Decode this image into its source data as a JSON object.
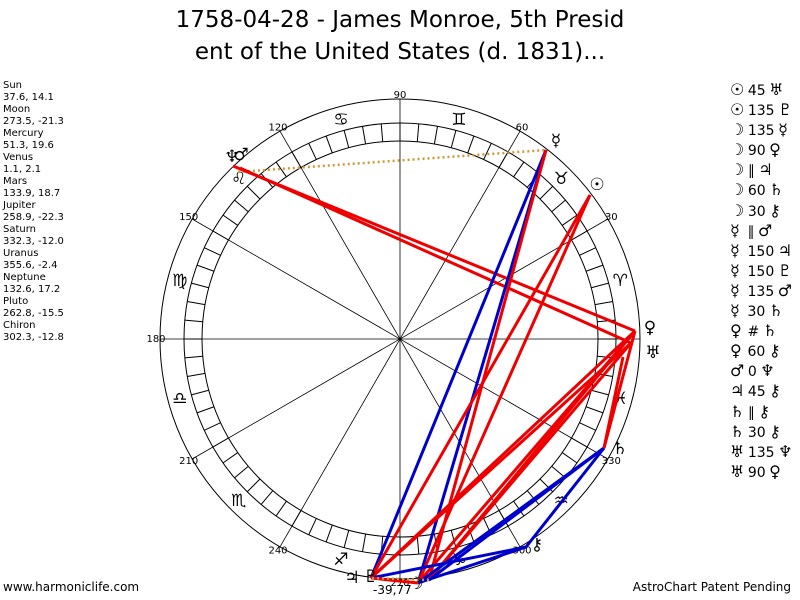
{
  "title": {
    "line1": "1758-04-28 - James Monroe, 5th Presid",
    "line2": "ent of the United States (d. 1831)..."
  },
  "planets": [
    {
      "name": "Sun",
      "coords": "37.6, 14.1"
    },
    {
      "name": "Moon",
      "coords": "273.5, -21.3"
    },
    {
      "name": "Mercury",
      "coords": "51.3, 19.6"
    },
    {
      "name": "Venus",
      "coords": "1.1, 2.1"
    },
    {
      "name": "Mars",
      "coords": "133.9, 18.7"
    },
    {
      "name": "Jupiter",
      "coords": "258.9, -22.3"
    },
    {
      "name": "Saturn",
      "coords": "332.3, -12.0"
    },
    {
      "name": "Uranus",
      "coords": "355.6, -2.4"
    },
    {
      "name": "Neptune",
      "coords": "132.6, 17.2"
    },
    {
      "name": "Pluto",
      "coords": "262.8, -15.5"
    },
    {
      "name": "Chiron",
      "coords": "302.3, -12.8"
    }
  ],
  "aspects": [
    {
      "p1": "☉",
      "aspect": "45",
      "p2": "♅"
    },
    {
      "p1": "☉",
      "aspect": "135",
      "p2": "♇"
    },
    {
      "p1": "☽",
      "aspect": "135",
      "p2": "☿"
    },
    {
      "p1": "☽",
      "aspect": "90",
      "p2": "♀"
    },
    {
      "p1": "☽",
      "aspect": "∥",
      "p2": "♃"
    },
    {
      "p1": "☽",
      "aspect": "60",
      "p2": "♄"
    },
    {
      "p1": "☽",
      "aspect": "30",
      "p2": "⚷"
    },
    {
      "p1": "☿",
      "aspect": "∥",
      "p2": "♂"
    },
    {
      "p1": "☿",
      "aspect": "150",
      "p2": "♃"
    },
    {
      "p1": "☿",
      "aspect": "150",
      "p2": "♇"
    },
    {
      "p1": "☿",
      "aspect": "135",
      "p2": "♂"
    },
    {
      "p1": "☿",
      "aspect": "30",
      "p2": "♄"
    },
    {
      "p1": "♀",
      "aspect": "#",
      "p2": "♄"
    },
    {
      "p1": "♀",
      "aspect": "60",
      "p2": "⚷"
    },
    {
      "p1": "♂",
      "aspect": "0",
      "p2": "♆"
    },
    {
      "p1": "♃",
      "aspect": "45",
      "p2": "⚷"
    },
    {
      "p1": "♄",
      "aspect": "∥",
      "p2": "⚷"
    },
    {
      "p1": "♄",
      "aspect": "30",
      "p2": "⚷"
    },
    {
      "p1": "♅",
      "aspect": "135",
      "p2": "♆"
    },
    {
      "p1": "♅",
      "aspect": "90",
      "p2": "♀"
    }
  ],
  "degree_labels": [
    "90",
    "60",
    "30",
    "120",
    "150",
    "180",
    "210",
    "240",
    "270",
    "300",
    "330"
  ],
  "zodiac_signs": [
    {
      "name": "aries",
      "glyph": "♈"
    },
    {
      "name": "taurus",
      "glyph": "♉"
    },
    {
      "name": "gemini",
      "glyph": "♊"
    },
    {
      "name": "cancer",
      "glyph": "♋"
    },
    {
      "name": "leo",
      "glyph": "♌"
    },
    {
      "name": "virgo",
      "glyph": "♍"
    },
    {
      "name": "libra",
      "glyph": "♎"
    },
    {
      "name": "scorpio",
      "glyph": "♏"
    },
    {
      "name": "sagittarius",
      "glyph": "♐"
    },
    {
      "name": "capricorn",
      "glyph": "♑"
    },
    {
      "name": "aquarius",
      "glyph": "♒"
    },
    {
      "name": "pisces",
      "glyph": "♓"
    }
  ],
  "planet_glyphs": [
    {
      "name": "mercury",
      "glyph": "☿"
    },
    {
      "name": "sun",
      "glyph": "☉"
    },
    {
      "name": "venus",
      "glyph": "♀"
    },
    {
      "name": "uranus",
      "glyph": "♅"
    },
    {
      "name": "neptune",
      "glyph": "♆"
    },
    {
      "name": "mars",
      "glyph": "♂"
    },
    {
      "name": "saturn",
      "glyph": "♄"
    },
    {
      "name": "chiron",
      "glyph": "⚷"
    },
    {
      "name": "moon",
      "glyph": "☽"
    },
    {
      "name": "pluto",
      "glyph": "♇"
    },
    {
      "name": "jupiter",
      "glyph": "♃"
    }
  ],
  "chart_annotation": "-39,77",
  "colors": {
    "red": "#ee0000",
    "blue": "#0000cc",
    "gold": "#cc9933"
  },
  "footer": {
    "left": "www.harmoniclife.com",
    "right": "AstroChart Patent Pending"
  }
}
